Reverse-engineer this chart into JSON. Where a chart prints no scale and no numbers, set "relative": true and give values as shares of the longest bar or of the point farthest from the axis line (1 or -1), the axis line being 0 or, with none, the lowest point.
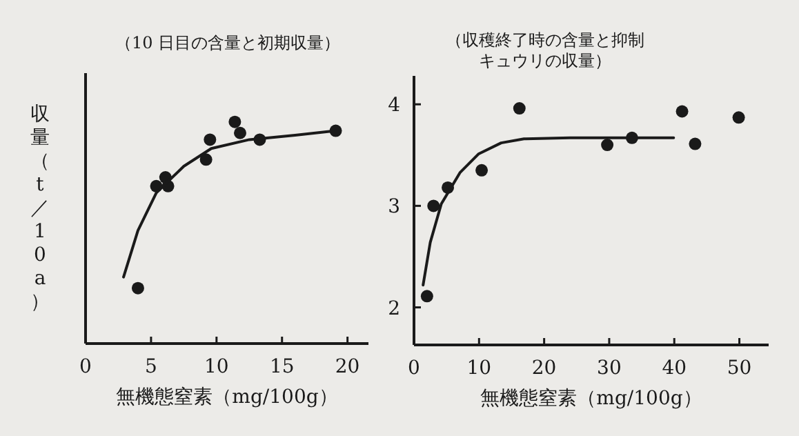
{
  "chart_data": [
    {
      "type": "scatter",
      "title": "（10 日目の含量と初期収量）",
      "xlabel": "無機態窒素（mg/100g）",
      "ylabel": "収量（t／10a）",
      "relative": true,
      "xlim": [
        0,
        21.6
      ],
      "xticks": [
        0,
        5,
        10,
        15,
        20
      ],
      "series": [
        {
          "color": "#1a1a1a",
          "marker": "circle",
          "x": [
            4.0,
            5.4,
            6.1,
            6.3,
            9.2,
            9.5,
            11.4,
            11.8,
            13.3,
            19.1
          ],
          "values": [
            0.25,
            0.71,
            0.75,
            0.71,
            0.83,
            0.92,
            1,
            0.95,
            0.92,
            0.96
          ]
        },
        {
          "type": "line",
          "color": "#1a1a1a",
          "x": [
            2.9,
            4.0,
            5.4,
            7.5,
            9.6,
            12.5,
            16,
            19.1
          ],
          "values": [
            0.3,
            0.51,
            0.68,
            0.8,
            0.88,
            0.92,
            0.94,
            0.96
          ]
        }
      ]
    },
    {
      "type": "scatter",
      "title": "（収穫終了時の含量と抑制キュウリの収量）",
      "xlabel": "無機態窒素（mg/100g）",
      "xlim": [
        0,
        54.5
      ],
      "ylim": [
        1.63,
        4.28
      ],
      "xticks": [
        0,
        10,
        20,
        30,
        40,
        50
      ],
      "yticks": [
        2,
        3,
        4
      ],
      "series": [
        {
          "color": "#1a1a1a",
          "marker": "circle",
          "x": [
            2.0,
            3.0,
            5.2,
            10.4,
            16.2,
            29.7,
            33.5,
            41.2,
            43.2,
            49.9
          ],
          "values": [
            2.11,
            3.0,
            3.18,
            3.35,
            3.96,
            3.6,
            3.67,
            3.93,
            3.61,
            3.87
          ]
        },
        {
          "type": "line",
          "color": "#1a1a1a",
          "x": [
            1.4,
            2.5,
            4.2,
            7.1,
            9.9,
            13.4,
            16.9,
            24,
            39.9
          ],
          "values": [
            2.22,
            2.64,
            3.02,
            3.33,
            3.51,
            3.62,
            3.66,
            3.67,
            3.67
          ]
        }
      ]
    }
  ]
}
